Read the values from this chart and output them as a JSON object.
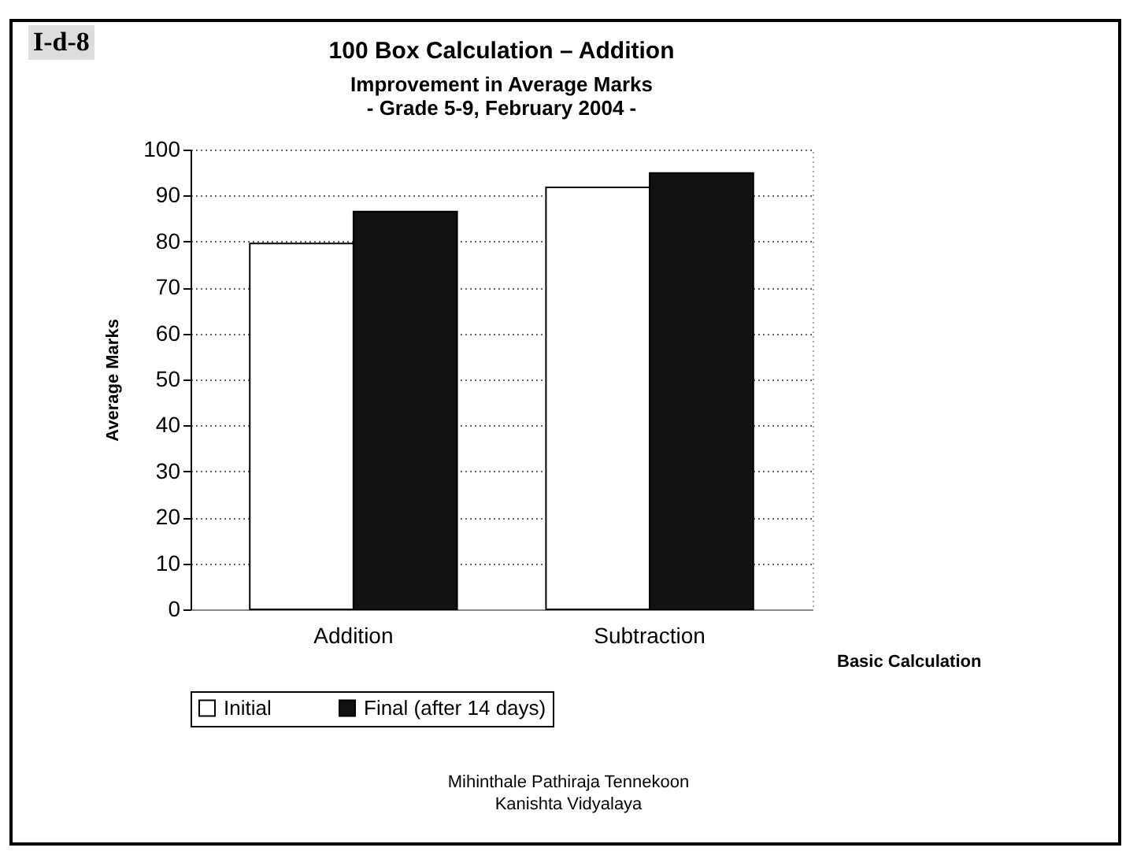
{
  "chart_data": {
    "type": "bar",
    "title": "100 Box Calculation – Addition",
    "subtitle": "Improvement in Average Marks",
    "annotations": [
      "I-d-8",
      "- Grade 5-9, February 2004 -",
      "Mihinthale Pathiraja Tennekoon",
      "Kanishta Vidyalaya"
    ],
    "xlabel": "Basic Calculation",
    "ylabel": "Average Marks",
    "categories": [
      "Addition",
      "Subtraction"
    ],
    "series": [
      {
        "name": "Initial",
        "color": "#ffffff",
        "values": [
          79.6,
          91.8
        ]
      },
      {
        "name": "Final (after 14 days)",
        "color": "#111111",
        "values": [
          86.5,
          94.9
        ]
      }
    ],
    "ylim": [
      0,
      100
    ],
    "yticks": [
      0,
      10,
      20,
      30,
      40,
      50,
      60,
      70,
      80,
      90,
      100
    ],
    "grid": "y",
    "legend": "bottom"
  }
}
